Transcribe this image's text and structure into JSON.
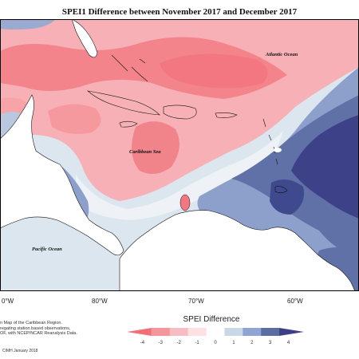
{
  "title": "SPEI1 Difference between November 2017 and December 2017",
  "labels": {
    "atlantic": "Atlantic Ocean",
    "caribbean": "Caribbean Sea",
    "pacific": "Pacific Ocean"
  },
  "longitude_ticks": [
    "80°W",
    "70°W",
    "60°W"
  ],
  "left_edge_tick": "0°W",
  "note_lines": [
    "n Map of the Caribbean Region.",
    "regating station based observations,",
    "OF, with NCEP/NCAR Reanalysis Data."
  ],
  "credit": "CIMH January 2018",
  "legend": {
    "title": "SPEI Difference",
    "tick_labels": [
      "-4",
      "-3",
      "-2",
      "-1",
      "0",
      "1",
      "2",
      "3",
      "4"
    ],
    "colors": [
      "#f36f78",
      "#f6969c",
      "#f9bcc0",
      "#fce0e2",
      "#ffffff",
      "#c8d8e6",
      "#8fa4d2",
      "#5a6ea4",
      "#3b3f86"
    ]
  }
}
